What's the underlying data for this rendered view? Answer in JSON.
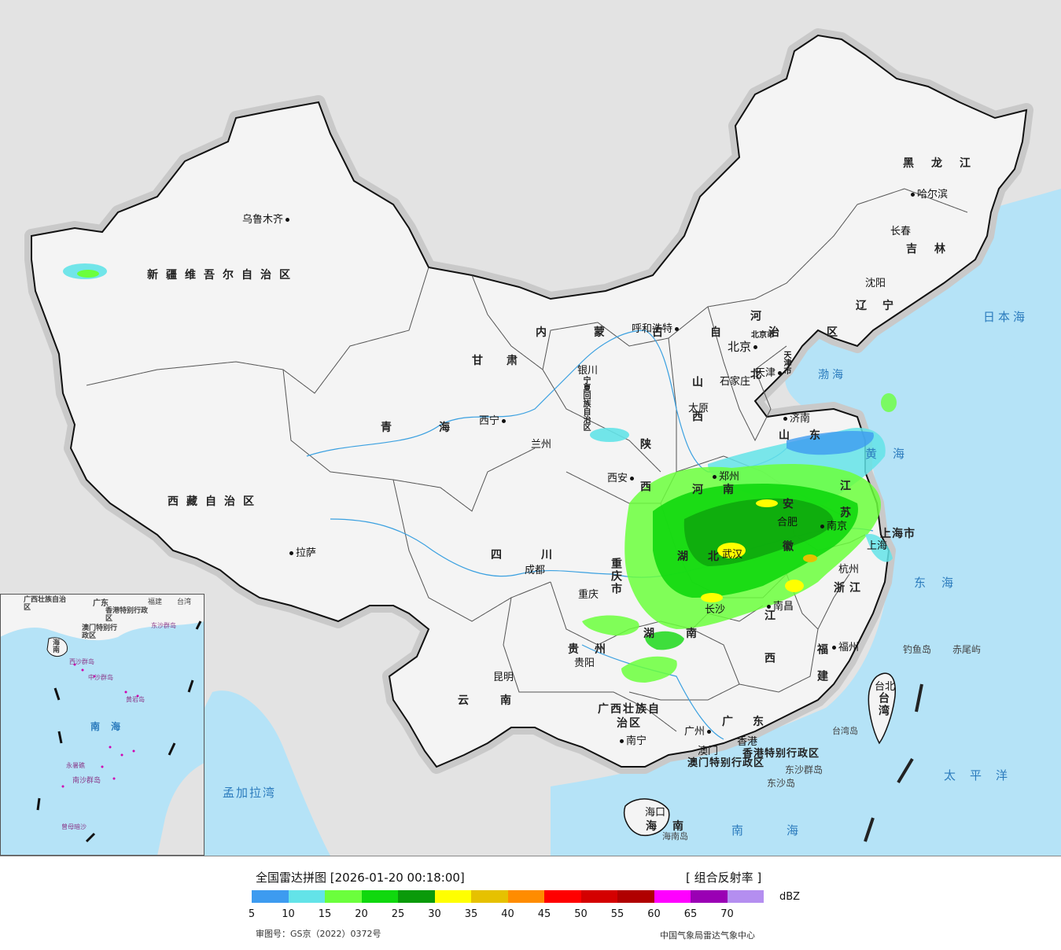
{
  "map": {
    "cities": [
      "乌鲁木齐",
      "拉萨",
      "西宁",
      "兰州",
      "银川",
      "呼和浩特",
      "北京",
      "天津",
      "石家庄",
      "太原",
      "济南",
      "西安",
      "郑州",
      "合肥",
      "南京",
      "上海",
      "杭州",
      "武汉",
      "长沙",
      "南昌",
      "福州",
      "成都",
      "重庆",
      "贵阳",
      "昆明",
      "南宁",
      "广州",
      "香港",
      "澳门",
      "海口",
      "哈尔滨",
      "长春",
      "沈阳",
      "台北"
    ],
    "provinces": {
      "xinjiang": "新疆维吾尔自治区",
      "xizang": "西藏自治区",
      "qinghai": "青海",
      "gansu": "甘肃",
      "neimenggu": "内蒙古自治区",
      "heilongjiang": "黑龙江",
      "jilin": "吉林",
      "liaoning": "辽宁",
      "hebei": "河北",
      "shanxi": "山西",
      "shandong": "山东",
      "henan": "河南",
      "shaanxi": "陕西",
      "sichuan": "四川",
      "chongqing": "重庆市",
      "hubei": "湖北",
      "hunan": "湖南",
      "anhui": "安徽",
      "jiangsu": "江苏",
      "zhejiang": "浙江",
      "jiangxi": "江西",
      "fujian": "福建",
      "guizhou": "贵州",
      "yunnan": "云南",
      "guangxi": "广西壮族自治区",
      "guangdong": "广东",
      "hainan": "海南",
      "taiwan": "台湾",
      "shanghai": "上海市",
      "ningxia": "宁夏回族自治区",
      "hk": "香港特别行政区",
      "macau": "澳门特别行政区",
      "beijing_city": "北京市",
      "tianjin_city": "天津市"
    },
    "seas": {
      "japan": "日本海",
      "bohai": "渤海",
      "huanghai": "黄海",
      "donghai": "东海",
      "taipingyang": "太平洋",
      "nanhai": "南海",
      "mengjialawan": "孟加拉湾"
    },
    "islands": {
      "diaoyu": "钓鱼岛",
      "chiwei": "赤尾屿",
      "dongsha": "东沙群岛",
      "dongshadao": "东沙岛",
      "hainandao": "海南岛",
      "taiwandao": "台湾岛"
    },
    "inset": {
      "labels": [
        "广西壮族自治区",
        "广东",
        "福建",
        "台湾",
        "海南",
        "香港特别行政区",
        "澳门特别行政区",
        "东沙群岛",
        "西沙群岛",
        "中沙群岛",
        "黄岩岛",
        "南海",
        "南沙群岛",
        "永暑礁",
        "曾母暗沙"
      ]
    }
  },
  "legend": {
    "title": "全国雷达拼图 [2026-01-20 00:18:00]",
    "product": "[ 组合反射率 ]",
    "unit": "dBZ",
    "colors": [
      "#3d9bf0",
      "#63e3e8",
      "#6bff3c",
      "#10d80e",
      "#0a9a0a",
      "#ffff00",
      "#e6c100",
      "#ff8c00",
      "#ff0000",
      "#d40000",
      "#b00000",
      "#ff00ff",
      "#9a00b4",
      "#b48ef0"
    ],
    "ticks": [
      "5",
      "10",
      "15",
      "20",
      "25",
      "30",
      "35",
      "40",
      "45",
      "50",
      "55",
      "60",
      "65",
      "70"
    ],
    "review_no": "审图号：GS京（2022）0372号",
    "source": "中国气象局雷达气象中心"
  }
}
